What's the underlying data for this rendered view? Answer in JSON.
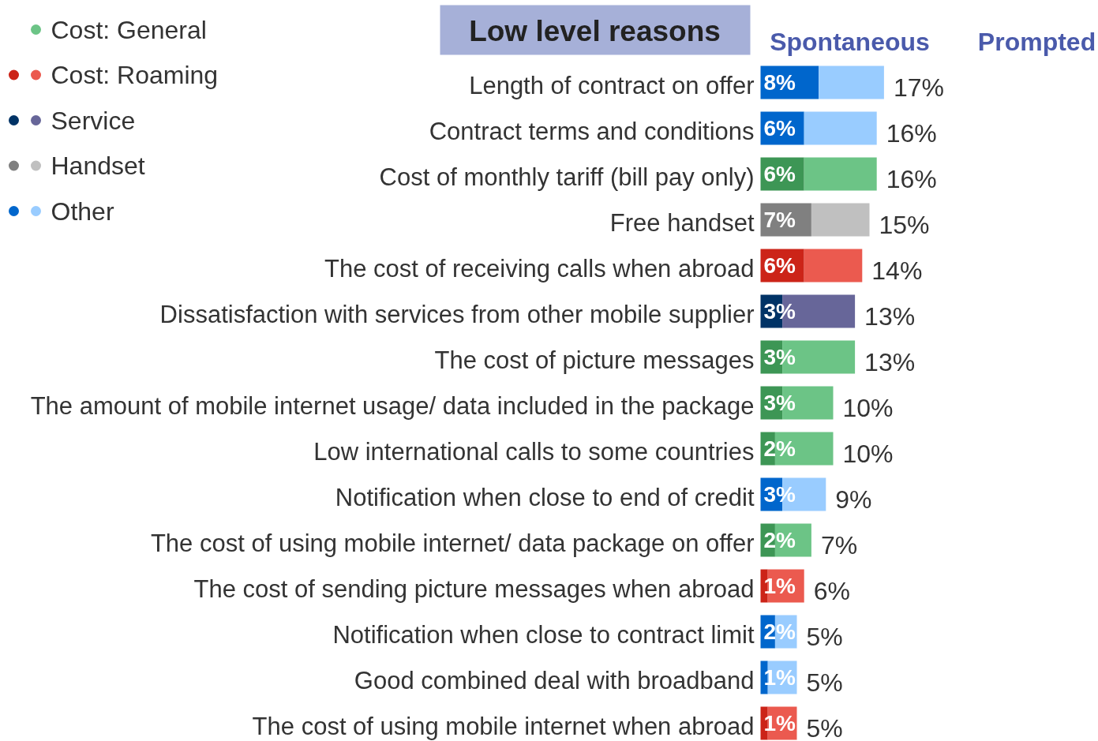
{
  "chart_data": {
    "type": "bar",
    "orientation": "horizontal",
    "stacked": true,
    "title": "Low level reasons",
    "legend": "top left",
    "annotations": [
      "Spontaneous",
      "Prompted"
    ],
    "categories": [
      "Length of contract on offer",
      "Contract terms and conditions",
      "Cost of monthly tariff (bill pay only)",
      "Free handset",
      "The cost of receiving calls when abroad",
      "Dissatisfaction with services from other mobile supplier",
      "The cost of picture messages",
      "The amount of mobile internet usage/ data included in the package",
      "Low international calls to some countries",
      "Notification when close to end of credit",
      "The cost of using mobile internet/ data package on offer",
      "The cost of sending picture messages when abroad",
      "Notification when close to contract limit",
      "Good combined deal with broadband",
      "The cost of using mobile internet when abroad"
    ],
    "series": [
      {
        "color": "#3d9655",
        "values": [
          null,
          null,
          6,
          null,
          null,
          null,
          3,
          3,
          2,
          null,
          2,
          null,
          null,
          null,
          null
        ],
        "value_labels": [
          null,
          null,
          "6%",
          null,
          null,
          null,
          "3%",
          "3%",
          "2%",
          null,
          "2%",
          null,
          null,
          null,
          null
        ]
      },
      {
        "name": "Cost: General",
        "color": "#6cc486",
        "values": [
          null,
          null,
          10,
          null,
          null,
          null,
          10,
          7,
          8,
          null,
          5,
          null,
          null,
          null,
          null
        ]
      },
      {
        "color": "#cc2418",
        "values": [
          null,
          null,
          null,
          null,
          6,
          null,
          null,
          null,
          null,
          null,
          null,
          1,
          null,
          null,
          1
        ],
        "value_labels": [
          null,
          null,
          null,
          null,
          "6%",
          null,
          null,
          null,
          null,
          null,
          null,
          "1%",
          null,
          null,
          "1%"
        ]
      },
      {
        "name": "Cost: Roaming",
        "color": "#eb5a4f",
        "values": [
          null,
          null,
          null,
          null,
          8,
          null,
          null,
          null,
          null,
          null,
          null,
          5,
          null,
          null,
          4
        ]
      },
      {
        "color": "#003366",
        "values": [
          null,
          null,
          null,
          null,
          null,
          3,
          null,
          null,
          null,
          null,
          null,
          null,
          null,
          null,
          null
        ],
        "value_labels": [
          null,
          null,
          null,
          null,
          null,
          "3%",
          null,
          null,
          null,
          null,
          null,
          null,
          null,
          null,
          null
        ]
      },
      {
        "name": "Service",
        "color": "#676699",
        "values": [
          null,
          null,
          null,
          null,
          null,
          10,
          null,
          null,
          null,
          null,
          null,
          null,
          null,
          null,
          null
        ]
      },
      {
        "color": "#808080",
        "values": [
          null,
          null,
          null,
          7,
          null,
          null,
          null,
          null,
          null,
          null,
          null,
          null,
          null,
          null,
          null
        ],
        "value_labels": [
          null,
          null,
          null,
          "7%",
          null,
          null,
          null,
          null,
          null,
          null,
          null,
          null,
          null,
          null,
          null
        ]
      },
      {
        "name": "Handset",
        "color": "#c0c0c0",
        "values": [
          null,
          null,
          null,
          8,
          null,
          null,
          null,
          null,
          null,
          null,
          null,
          null,
          null,
          null,
          null
        ]
      },
      {
        "color": "#0066cc",
        "values": [
          8,
          6,
          null,
          null,
          null,
          null,
          null,
          null,
          null,
          3,
          null,
          null,
          2,
          1,
          null
        ],
        "value_labels": [
          "8%",
          "6%",
          null,
          null,
          null,
          null,
          null,
          null,
          null,
          "3%",
          null,
          null,
          "2%",
          "1%",
          null
        ]
      },
      {
        "name": "Other",
        "color": "#99ccff",
        "values": [
          9,
          10,
          null,
          null,
          null,
          null,
          null,
          null,
          null,
          6,
          null,
          null,
          3,
          4,
          null
        ]
      }
    ],
    "totals": [
      "17%",
      "16%",
      "16%",
      "15%",
      "14%",
      "13%",
      "13%",
      "10%",
      "10%",
      "9%",
      "7%",
      "6%",
      "5%",
      "5%",
      "5%"
    ]
  }
}
